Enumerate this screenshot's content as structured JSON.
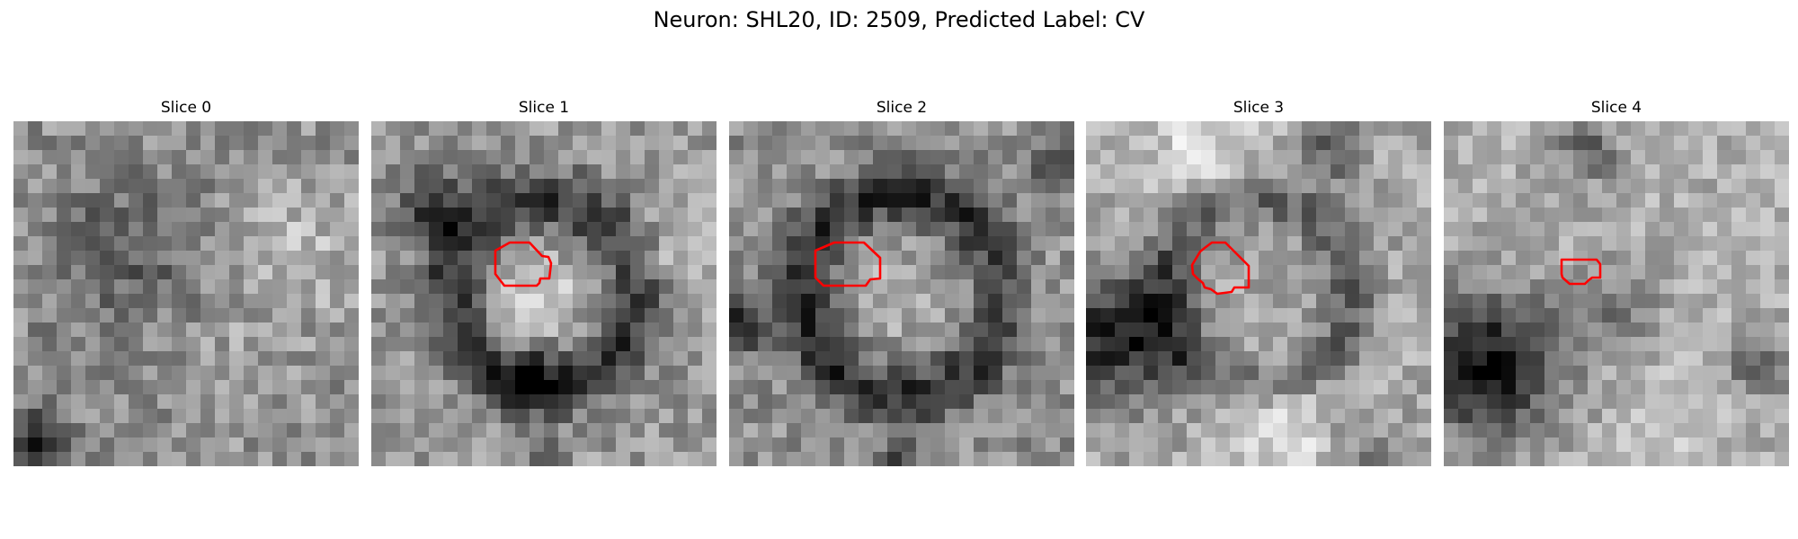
{
  "figure": {
    "title": "Neuron: SHL20, ID: 2509, Predicted Label: CV",
    "outline_color": "#ff0000"
  },
  "slices": [
    {
      "label": "Slice 0",
      "has_outline": false
    },
    {
      "label": "Slice 1",
      "has_outline": true
    },
    {
      "label": "Slice 2",
      "has_outline": true
    },
    {
      "label": "Slice 3",
      "has_outline": true
    },
    {
      "label": "Slice 4",
      "has_outline": true
    }
  ]
}
